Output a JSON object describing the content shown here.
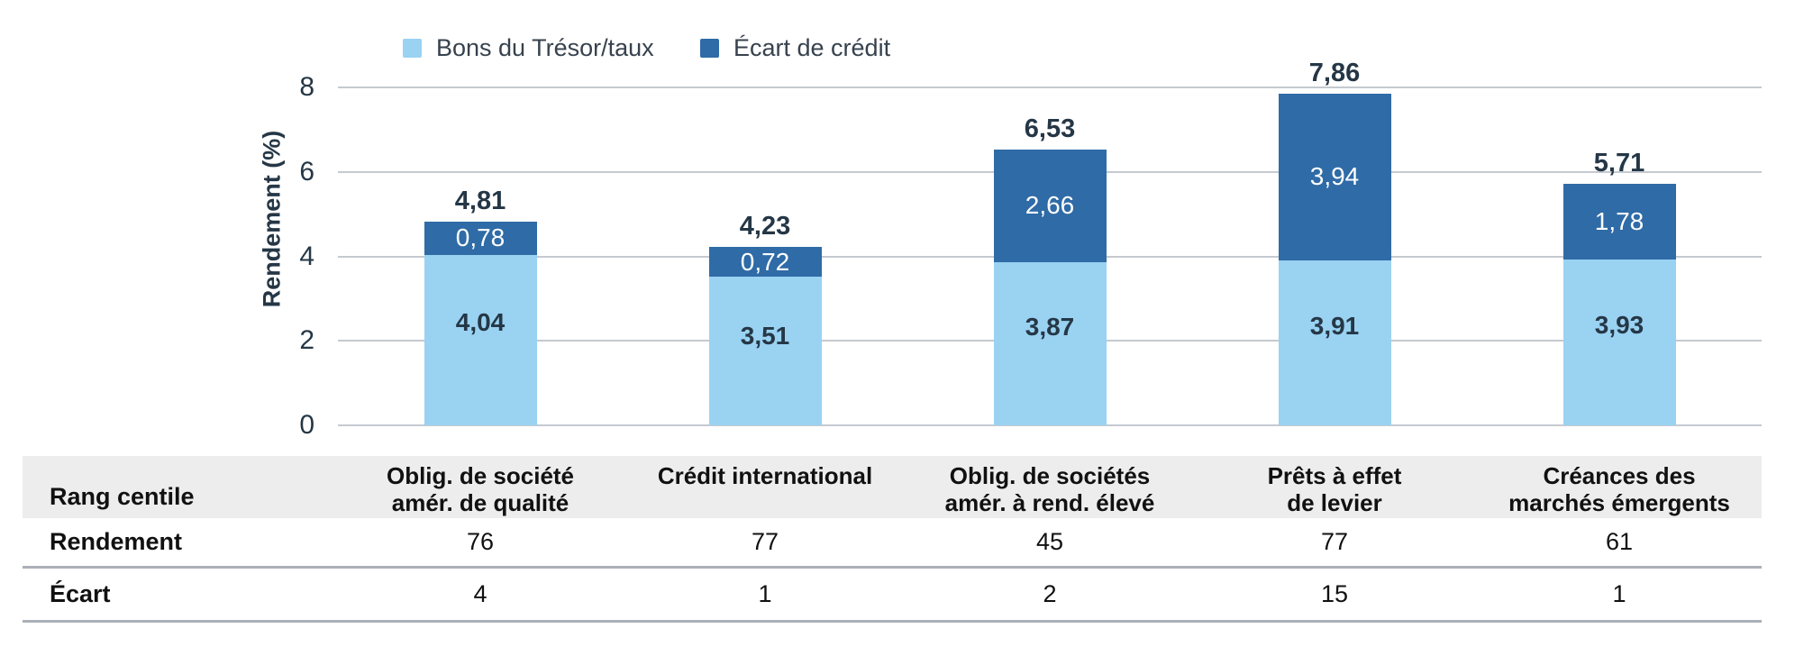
{
  "chart_data": {
    "type": "bar",
    "stacked": true,
    "categories": [
      "Oblig. de société amér. de qualité",
      "Crédit international",
      "Oblig. de sociétés amér. à rend. élevé",
      "Prêts à effet de levier",
      "Créances des marchés émergents"
    ],
    "series": [
      {
        "name": "Bons du Trésor/taux",
        "color": "#9AD2F2",
        "values": [
          4.04,
          3.51,
          3.87,
          3.91,
          3.93
        ],
        "value_labels": [
          "4,04",
          "3,51",
          "3,87",
          "3,91",
          "3,93"
        ]
      },
      {
        "name": "Écart de crédit",
        "color": "#2F6BA6",
        "values": [
          0.78,
          0.72,
          2.66,
          3.94,
          1.78
        ],
        "value_labels": [
          "0,78",
          "0,72",
          "2,66",
          "3,94",
          "1,78"
        ]
      }
    ],
    "totals": [
      4.81,
      4.23,
      6.53,
      7.86,
      5.71
    ],
    "total_labels": [
      "4,81",
      "4,23",
      "6,53",
      "7,86",
      "5,71"
    ],
    "title": "",
    "xlabel": "",
    "ylabel": "Rendement (%)",
    "ylim": [
      0,
      8
    ],
    "yticks": [
      0,
      2,
      4,
      6,
      8
    ],
    "grid": true,
    "legend_position": "top",
    "colors": {
      "label_text": "#253746",
      "gridline": "#C5CAD0",
      "white_label": "#ffffff"
    }
  },
  "table": {
    "corner_label": "Rang centile",
    "columns": [
      "Oblig. de société\namér. de qualité",
      "Crédit international",
      "Oblig. de sociétés\namér. à rend. élevé",
      "Prêts à effet\nde levier",
      "Créances des\nmarchés émergents"
    ],
    "rows": [
      {
        "label": "Rendement",
        "values": [
          "76",
          "77",
          "45",
          "77",
          "61"
        ]
      },
      {
        "label": "Écart",
        "values": [
          "4",
          "1",
          "2",
          "15",
          "1"
        ]
      }
    ],
    "header_bg": "#EDEDEE",
    "border_color": "#ABB0B8"
  }
}
